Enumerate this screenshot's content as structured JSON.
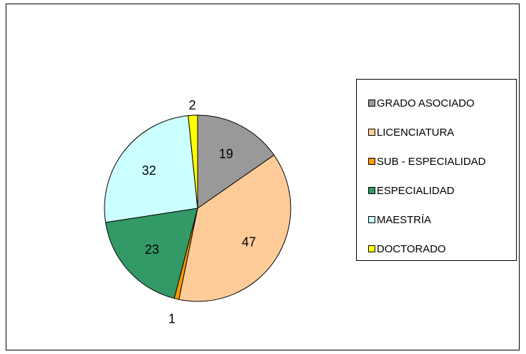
{
  "chart_data": {
    "type": "pie",
    "title": "",
    "start_angle": 0,
    "direction": "clockwise",
    "legend_placement": "right",
    "slices": [
      {
        "label": "GRADO ASOCIADO",
        "value": 19,
        "color": "#999999",
        "label_text": "19"
      },
      {
        "label": "LICENCIATURA",
        "value": 47,
        "color": "#ffcc99",
        "label_text": "47"
      },
      {
        "label": "SUB - ESPECIALIDAD",
        "value": 1,
        "color": "#ff9900",
        "label_text": "1"
      },
      {
        "label": "ESPECIALIDAD",
        "value": 23,
        "color": "#339966",
        "label_text": "23"
      },
      {
        "label": "MAESTRÍA",
        "value": 32,
        "color": "#ccffff",
        "label_text": "32"
      },
      {
        "label": "DOCTORADO",
        "value": 2,
        "color": "#ffff00",
        "label_text": "2"
      }
    ]
  }
}
